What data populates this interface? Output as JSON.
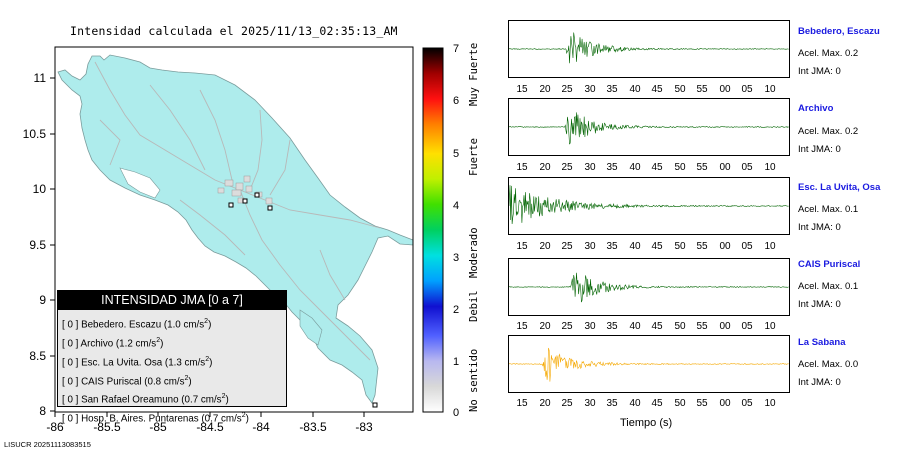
{
  "map": {
    "title": "Intensidad calculada el 2025/11/13_02:35:13_AM",
    "xticks": [
      "-86",
      "-85.5",
      "-85",
      "-84.5",
      "-84",
      "-83.5",
      "-83"
    ],
    "yticks": [
      "11",
      "10.5",
      "10",
      "9.5",
      "9",
      "8.5",
      "8"
    ]
  },
  "legend": {
    "title": "INTENSIDAD JMA [0 a 7]",
    "items": [
      {
        "prefix": "[ 0 ]",
        "text": "Bebedero. Escazu (1.0 cm/s",
        "sup": "2",
        "suffix": ")"
      },
      {
        "prefix": "[ 0 ]",
        "text": "Archivo (1.2 cm/s",
        "sup": "2",
        "suffix": ")"
      },
      {
        "prefix": "[ 0 ]",
        "text": "Esc. La Uvita. Osa (1.3 cm/s",
        "sup": "2",
        "suffix": ")"
      },
      {
        "prefix": "[ 0 ]",
        "text": "CAIS Puriscal (0.8 cm/s",
        "sup": "2",
        "suffix": ")"
      },
      {
        "prefix": "[ 0 ]",
        "text": "San Rafael Oreamuno (0.7 cm/s",
        "sup": "2",
        "suffix": ")"
      },
      {
        "prefix": "[ 0 ]",
        "text": "Hosp. B. Aires. Puntarenas (0.7 cm/s",
        "sup": "2",
        "suffix": ")"
      }
    ]
  },
  "colorbar": {
    "ticks": [
      "7",
      "6",
      "5",
      "4",
      "3",
      "2",
      "1",
      "0"
    ],
    "labels": [
      {
        "text": "Muy Fuerte"
      },
      {
        "text": "Fuerte"
      },
      {
        "text": "Moderado"
      },
      {
        "text": "Debil"
      },
      {
        "text": "No sentido"
      }
    ]
  },
  "time_axis": {
    "ticks": [
      "15",
      "20",
      "25",
      "30",
      "35",
      "40",
      "45",
      "50",
      "55",
      "00",
      "05",
      "10"
    ],
    "label": "Tiempo (s)"
  },
  "stations": [
    {
      "name": "Bebedero, Escazu",
      "acel": "Acel. Max. 0.2",
      "int": "Int JMA: 0",
      "color": "#006400",
      "onset": 0.2,
      "amp": 1.0
    },
    {
      "name": "Archivo",
      "acel": "Acel. Max. 0.2",
      "int": "Int JMA: 0",
      "color": "#006400",
      "onset": 0.2,
      "amp": 1.0
    },
    {
      "name": "Esc. La Uvita, Osa",
      "acel": "Acel. Max. 0.1",
      "int": "Int JMA: 0",
      "color": "#006400",
      "onset": 0.01,
      "amp": 0.9
    },
    {
      "name": "CAIS Puriscal",
      "acel": "Acel. Max. 0.1",
      "int": "Int JMA: 0",
      "color": "#006400",
      "onset": 0.22,
      "amp": 1.0
    },
    {
      "name": "La Sabana",
      "acel": "Acel. Max. 0.0",
      "int": "Int JMA: 0",
      "color": "#f5a800",
      "onset": 0.12,
      "amp": 1.0
    }
  ]
}
